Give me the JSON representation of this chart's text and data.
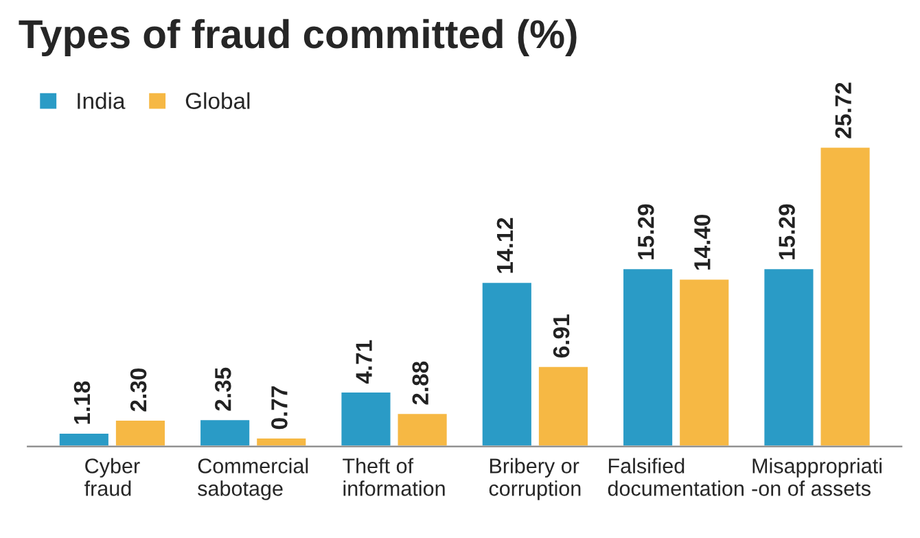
{
  "chart_data": {
    "type": "bar",
    "title": "Types of fraud committed (%)",
    "categories": [
      "Cyber\nfraud",
      "Commercial\nsabotage",
      "Theft of\ninformation",
      "Bribery or\ncorruption",
      "Falsified\ndocumentation",
      "Misappropriati\n-on of assets"
    ],
    "series": [
      {
        "name": "India",
        "color": "#2a9bc6",
        "values": [
          1.18,
          2.35,
          4.71,
          14.12,
          15.29,
          15.29
        ],
        "value_labels": [
          "1.18",
          "2.35",
          "4.71",
          "14.12",
          "15.29",
          "15.29"
        ]
      },
      {
        "name": "Global",
        "color": "#f6b844",
        "values": [
          2.3,
          0.77,
          2.88,
          6.91,
          14.4,
          25.72
        ],
        "value_labels": [
          "2.30",
          "0.77",
          "2.88",
          "6.91",
          "14.40",
          "25.72"
        ]
      }
    ],
    "legend": "top left",
    "grid": false
  }
}
